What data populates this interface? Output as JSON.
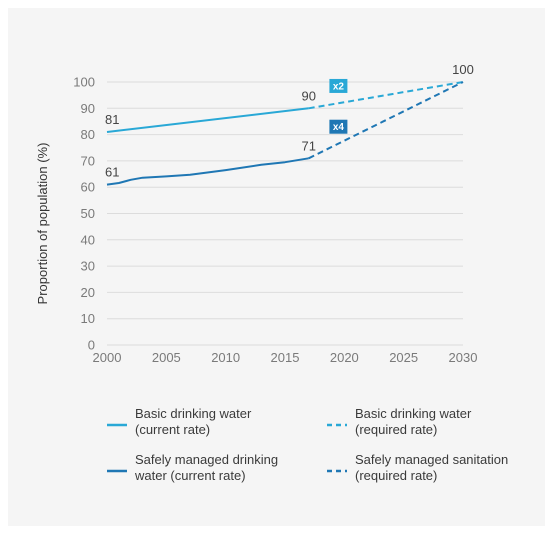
{
  "chart_data": {
    "type": "line",
    "ylabel": "Proportion of population (%)",
    "xlabel": "",
    "xlim": [
      2000,
      2030
    ],
    "ylim": [
      0,
      100
    ],
    "x_ticks": [
      "2000",
      "2005",
      "2010",
      "2015",
      "2020",
      "2025",
      "2030"
    ],
    "y_ticks": [
      "0",
      "10",
      "20",
      "30",
      "40",
      "50",
      "60",
      "70",
      "80",
      "90",
      "100"
    ],
    "grid": "horizontal",
    "series": [
      {
        "name": "Basic drinking water (current rate)",
        "legend_lines": [
          "Basic drinking water",
          "(current rate)"
        ],
        "color": "#29a8d6",
        "style": "solid",
        "x": [
          2000,
          2017
        ],
        "y": [
          81,
          90
        ]
      },
      {
        "name": "Safely managed drinking water (current rate)",
        "legend_lines": [
          "Safely managed drinking",
          "water (current rate)"
        ],
        "color": "#1f77b4",
        "style": "solid",
        "x": [
          2000,
          2001,
          2002,
          2003,
          2005,
          2007,
          2010,
          2013,
          2015,
          2017
        ],
        "y": [
          61,
          61.6,
          62.8,
          63.6,
          64.1,
          64.7,
          66.5,
          68.5,
          69.5,
          71
        ]
      },
      {
        "name": "Basic drinking water (required rate)",
        "legend_lines": [
          "Basic drinking water",
          "(required rate)"
        ],
        "color": "#29a8d6",
        "style": "dashed",
        "x": [
          2017,
          2030
        ],
        "y": [
          90,
          100
        ]
      },
      {
        "name": "Safely managed sanitation (required rate)",
        "legend_lines": [
          "Safely managed sanitation",
          "(required rate)"
        ],
        "color": "#1f77b4",
        "style": "dashed",
        "x": [
          2017,
          2030
        ],
        "y": [
          71,
          100
        ]
      }
    ],
    "data_labels": [
      {
        "text": "81",
        "x": 2000,
        "y": 81
      },
      {
        "text": "90",
        "x": 2017,
        "y": 90
      },
      {
        "text": "61",
        "x": 2000,
        "y": 61
      },
      {
        "text": "71",
        "x": 2017,
        "y": 71
      },
      {
        "text": "100",
        "x": 2030,
        "y": 100
      }
    ],
    "badges": [
      {
        "text": "x2",
        "color": "#29a8d6",
        "x": 2019.5,
        "y": 98.5
      },
      {
        "text": "x4",
        "color": "#1f77b4",
        "x": 2019.5,
        "y": 83
      }
    ]
  }
}
